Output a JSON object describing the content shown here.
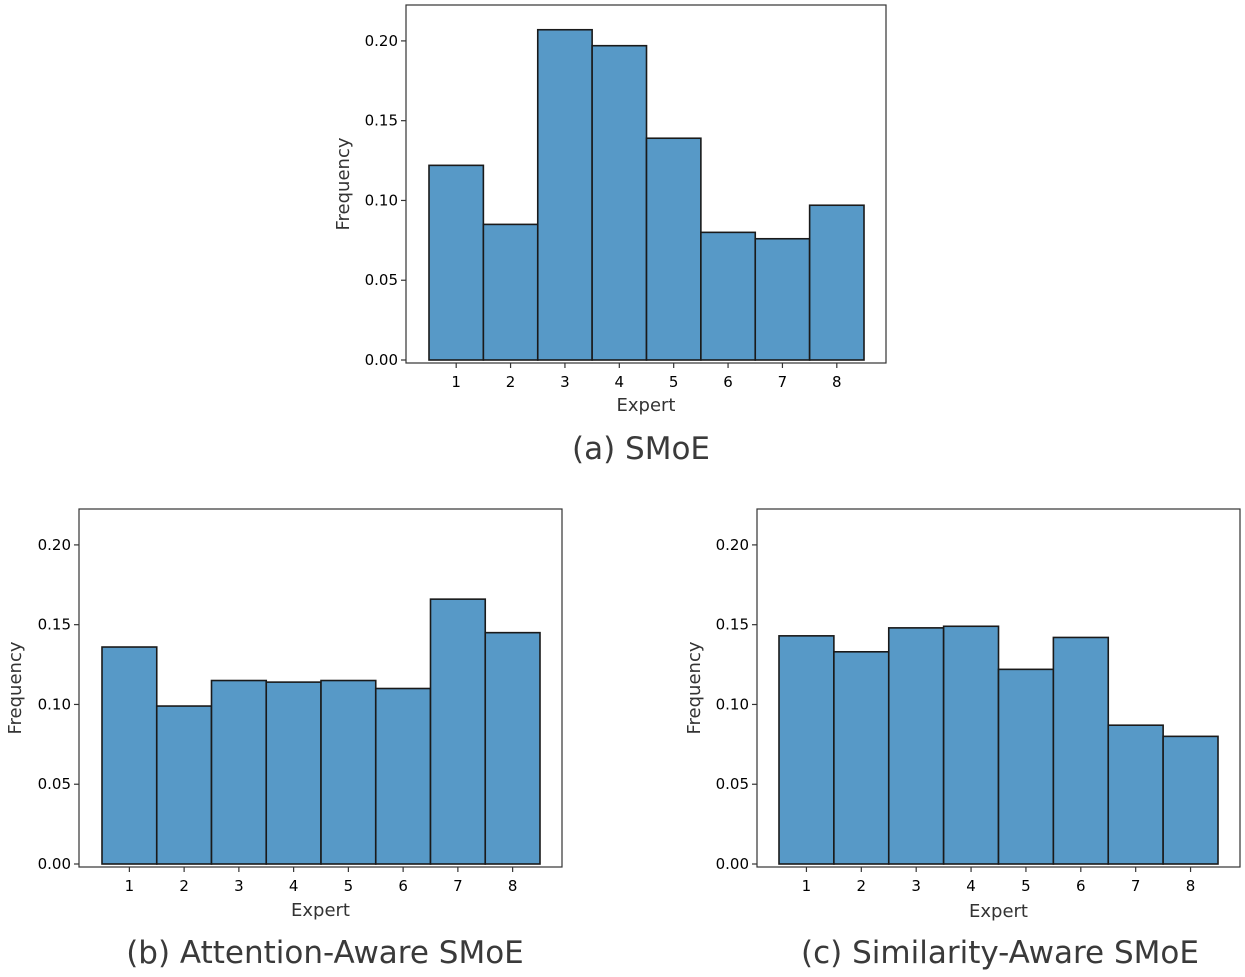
{
  "chart_data": [
    {
      "type": "bar",
      "title": "(a) SMoE",
      "xlabel": "Expert",
      "ylabel": "Frequency",
      "categories": [
        "1",
        "2",
        "3",
        "4",
        "5",
        "6",
        "7",
        "8"
      ],
      "values": [
        0.122,
        0.085,
        0.207,
        0.197,
        0.139,
        0.08,
        0.076,
        0.097
      ],
      "ylim": [
        0,
        0.22
      ],
      "yticks": [
        "0.00",
        "0.05",
        "0.10",
        "0.15",
        "0.20"
      ],
      "bar_color": "#5799c7",
      "edge_color": "#1a1a1a",
      "grid": false
    },
    {
      "type": "bar",
      "title": "(b) Attention-Aware SMoE",
      "xlabel": "Expert",
      "ylabel": "Frequency",
      "categories": [
        "1",
        "2",
        "3",
        "4",
        "5",
        "6",
        "7",
        "8"
      ],
      "values": [
        0.136,
        0.099,
        0.115,
        0.114,
        0.115,
        0.11,
        0.166,
        0.145
      ],
      "ylim": [
        0,
        0.22
      ],
      "yticks": [
        "0.00",
        "0.05",
        "0.10",
        "0.15",
        "0.20"
      ],
      "bar_color": "#5799c7",
      "edge_color": "#1a1a1a",
      "grid": false
    },
    {
      "type": "bar",
      "title": "(c) Similarity-Aware SMoE",
      "xlabel": "Expert",
      "ylabel": "Frequency",
      "categories": [
        "1",
        "2",
        "3",
        "4",
        "5",
        "6",
        "7",
        "8"
      ],
      "values": [
        0.143,
        0.133,
        0.148,
        0.149,
        0.122,
        0.142,
        0.087,
        0.08
      ],
      "ylim": [
        0,
        0.22
      ],
      "yticks": [
        "0.00",
        "0.05",
        "0.10",
        "0.15",
        "0.20"
      ],
      "bar_color": "#5799c7",
      "edge_color": "#1a1a1a",
      "grid": false
    }
  ]
}
